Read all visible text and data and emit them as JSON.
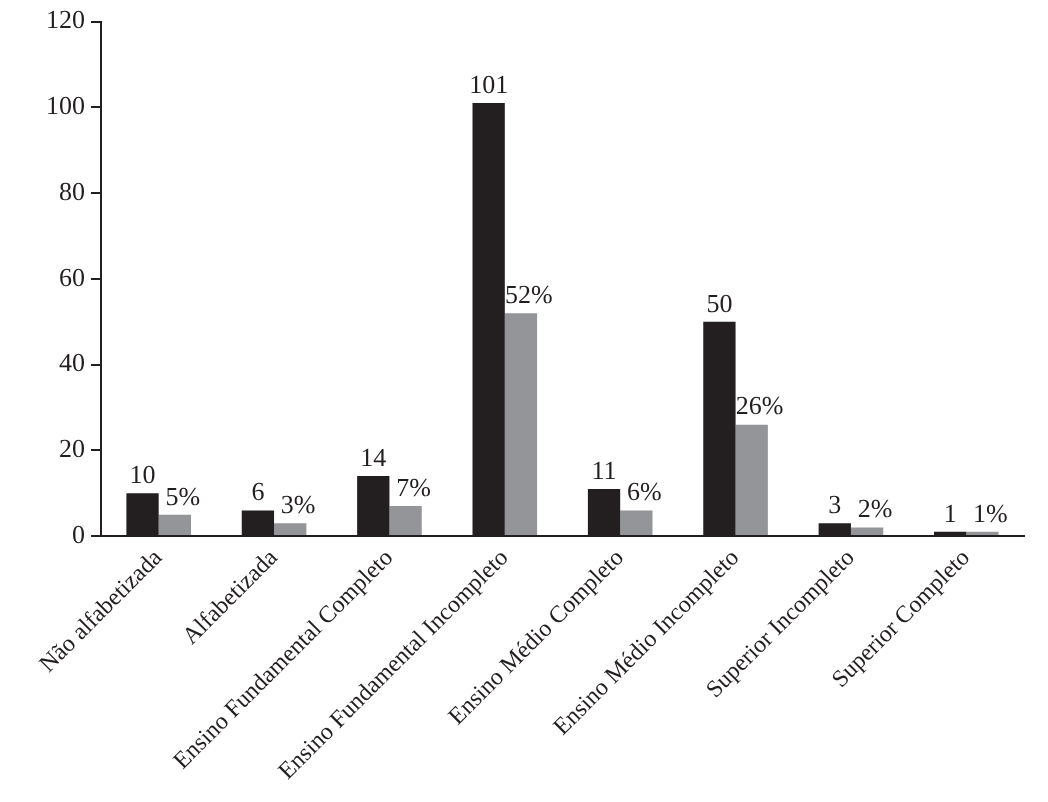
{
  "chart_data": {
    "type": "bar",
    "categories": [
      "Não alfabetizada",
      "Alfabetizada",
      "Ensino Fundamental Completo",
      "Ensino Fundamental Incompleto",
      "Ensino Médio Completo",
      "Ensino Médio Incompleto",
      "Superior Incompleto",
      "Superior Completo"
    ],
    "series": [
      {
        "color": "#231f20",
        "values": [
          10,
          6,
          14,
          101,
          11,
          50,
          3,
          1
        ],
        "value_labels": [
          "10",
          "6",
          "14",
          "101",
          "11",
          "50",
          "3",
          "1"
        ]
      },
      {
        "color": "#939598",
        "values": [
          5,
          3,
          7,
          52,
          6,
          26,
          2,
          1
        ],
        "value_labels": [
          "5%",
          "3%",
          "7%",
          "52%",
          "6%",
          "26%",
          "2%",
          "1%"
        ]
      }
    ],
    "ylim": [
      0,
      120
    ],
    "yticks": [
      0,
      20,
      40,
      60,
      80,
      100,
      120
    ],
    "grid": false,
    "legend": false
  }
}
